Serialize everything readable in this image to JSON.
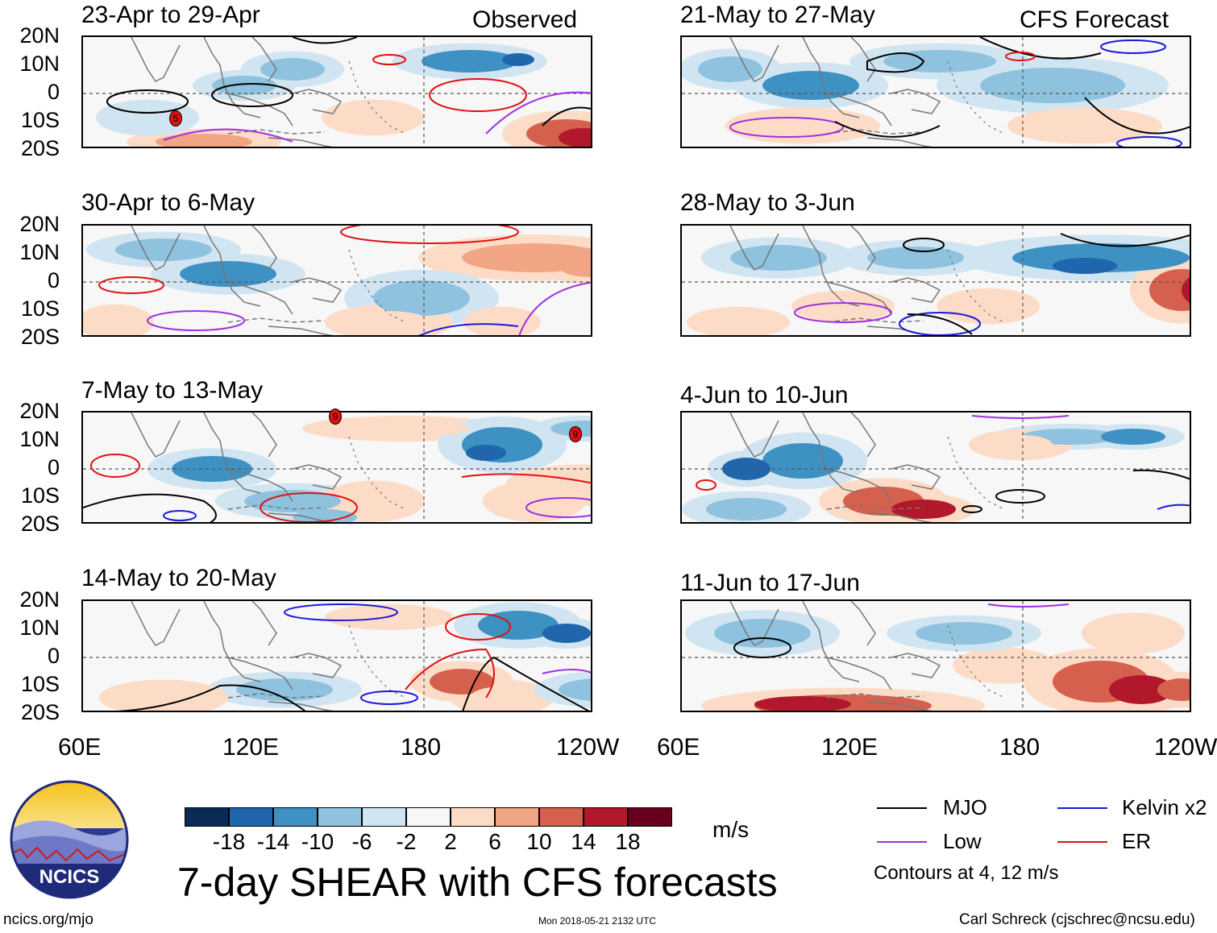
{
  "panels_observed": [
    {
      "title": "23-Apr to 29-Apr",
      "tag": "Observed"
    },
    {
      "title": "30-Apr to 6-May",
      "tag": ""
    },
    {
      "title": "7-May to 13-May",
      "tag": ""
    },
    {
      "title": "14-May to 20-May",
      "tag": ""
    }
  ],
  "panels_forecast": [
    {
      "title": "21-May to 27-May",
      "tag": "CFS Forecast"
    },
    {
      "title": "28-May to 3-Jun",
      "tag": ""
    },
    {
      "title": "4-Jun to 10-Jun",
      "tag": ""
    },
    {
      "title": "11-Jun to 17-Jun",
      "tag": ""
    }
  ],
  "lat_labels": [
    "20N",
    "10N",
    "0",
    "10S",
    "20S"
  ],
  "lon_labels": [
    "60E",
    "120E",
    "180",
    "120W"
  ],
  "colorbar": {
    "colors": [
      "#0b2b57",
      "#1f66ad",
      "#3e91c3",
      "#8fc2de",
      "#d0e5f1",
      "#f7f7f7",
      "#fcdcc7",
      "#f2a584",
      "#d5604e",
      "#b2182b",
      "#67001f"
    ],
    "ticks": [
      "-18",
      "-14",
      "-10",
      "-6",
      "-2",
      "2",
      "6",
      "10",
      "14",
      "18"
    ],
    "units": "m/s"
  },
  "title": "7-day SHEAR with CFS forecasts",
  "legend": {
    "mjo": {
      "label": "MJO",
      "color": "#000000"
    },
    "kelvin": {
      "label": "Kelvin x2",
      "color": "#1a1adb"
    },
    "low": {
      "label": "Low",
      "color": "#a030e0"
    },
    "er": {
      "label": "ER",
      "color": "#e01010"
    },
    "note": "Contours at 4, 12 m/s"
  },
  "logo_text": "NCICS",
  "footer": {
    "url": "ncics.org/mjo",
    "timestamp": "Mon 2018-05-21 2132 UTC",
    "author": "Carl Schreck (cjschrec@ncsu.edu)"
  },
  "storm_marks": {
    "p1": [
      "5"
    ],
    "p3": [
      "9",
      "9"
    ]
  }
}
